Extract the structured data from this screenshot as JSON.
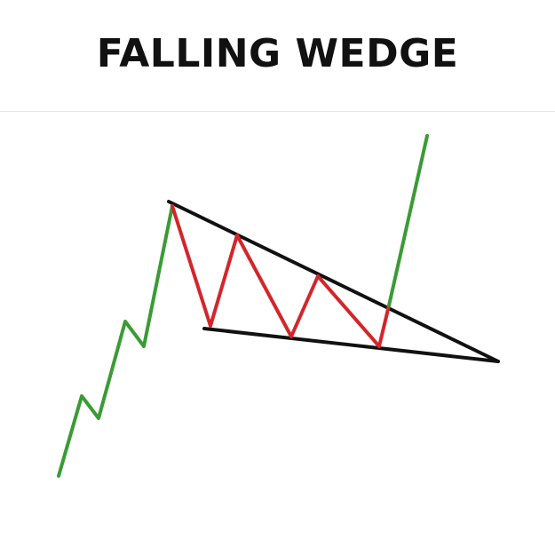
{
  "title": "FALLING WEDGE",
  "colors": {
    "background": "#ffffff",
    "title": "#111111",
    "uptrend": "#3a9b35",
    "wedge_swings": "#d4252a",
    "trendlines": "#111111",
    "divider": "#e6e6e6"
  }
}
